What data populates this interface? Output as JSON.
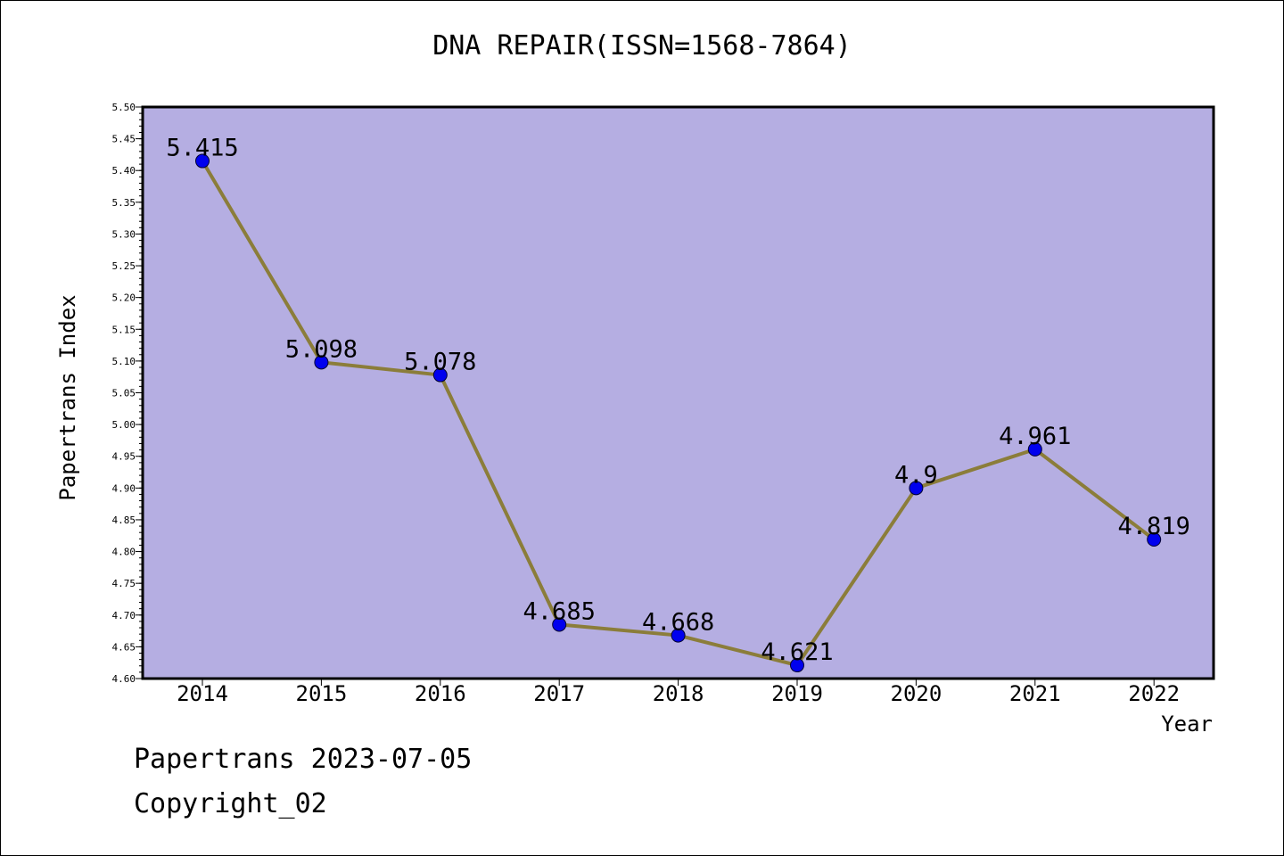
{
  "chart_data": {
    "type": "line",
    "title": "DNA REPAIR(ISSN=1568-7864)",
    "xlabel": "Year",
    "ylabel": "Papertrans Index",
    "categories": [
      "2014",
      "2015",
      "2016",
      "2017",
      "2018",
      "2019",
      "2020",
      "2021",
      "2022"
    ],
    "series": [
      {
        "values": [
          5.415,
          5.098,
          5.078,
          4.685,
          4.668,
          4.621,
          4.9,
          4.961,
          4.819
        ],
        "labels": [
          "5.415",
          "5.098",
          "5.078",
          "4.685",
          "4.668",
          "4.621",
          "4.9",
          "4.961",
          "4.819"
        ]
      }
    ],
    "ylim": [
      4.6,
      5.5
    ],
    "ytick_step": 0.05,
    "yticks": [
      "4.60",
      "4.65",
      "4.70",
      "4.75",
      "4.80",
      "4.85",
      "4.90",
      "4.95",
      "5.00",
      "5.05",
      "5.10",
      "5.15",
      "5.20",
      "5.25",
      "5.30",
      "5.35",
      "5.40",
      "5.45",
      "5.50"
    ],
    "grid": false,
    "colors": {
      "plot_background": "#b5aee2",
      "line": "#8b7d3a",
      "marker": "#0000ee"
    }
  },
  "footer": {
    "line1": "Papertrans 2023-07-05",
    "line2": "Copyright_02"
  }
}
